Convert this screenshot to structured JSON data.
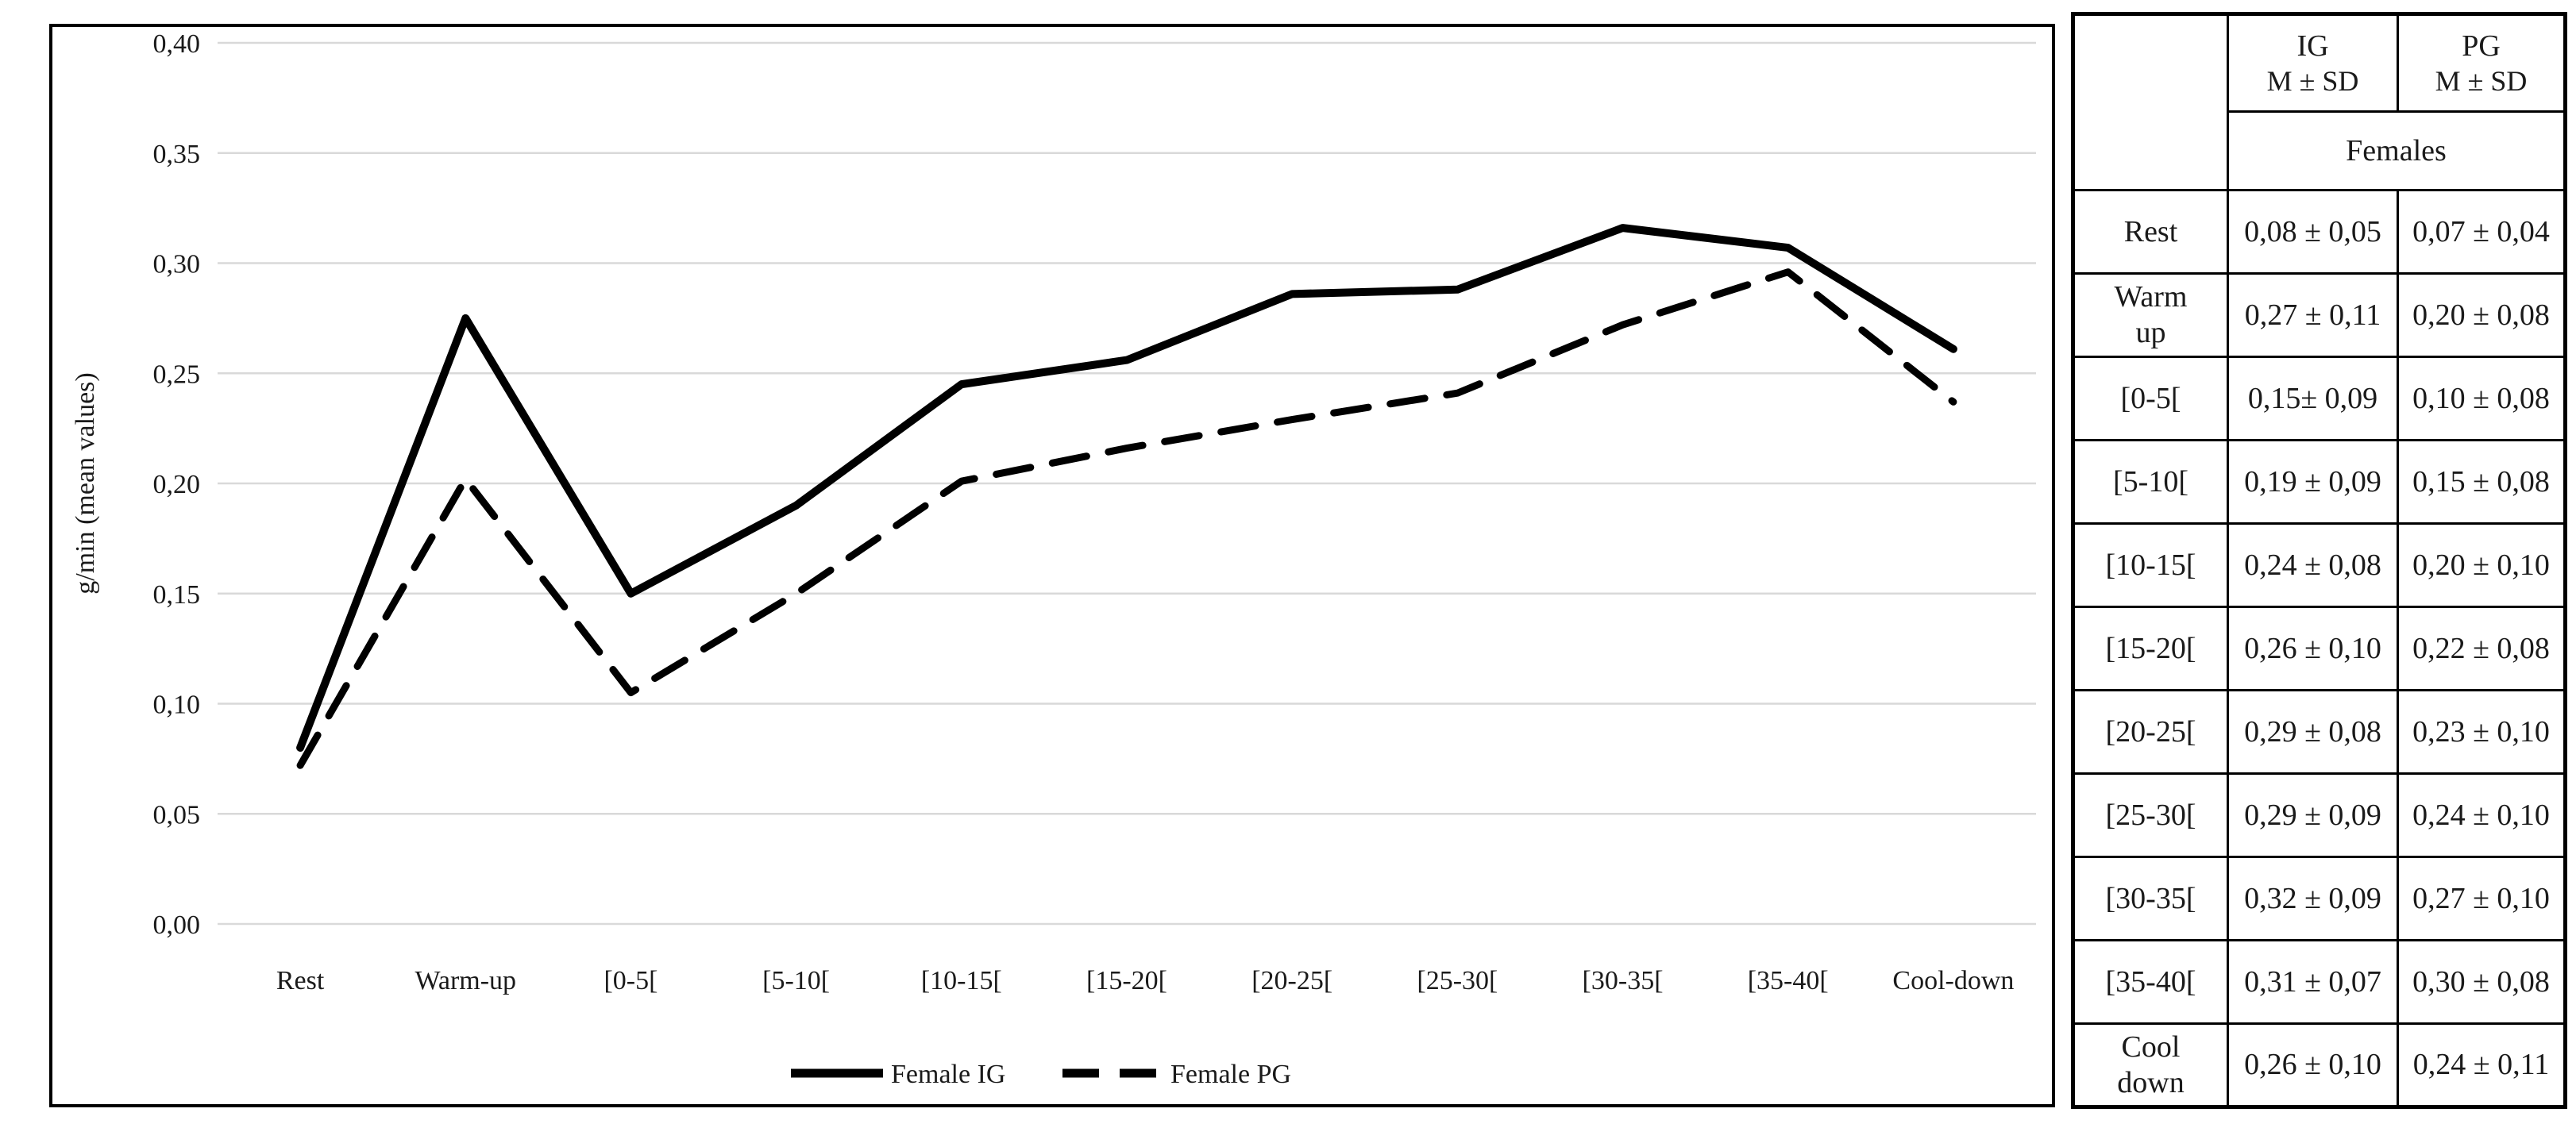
{
  "chart_data": {
    "type": "line",
    "title": "",
    "categories": [
      "Rest",
      "Warm-up",
      "[0-5[",
      "[5-10[",
      "[10-15[",
      "[15-20[",
      "[20-25[",
      "[25-30[",
      "[30-35[",
      "[35-40[",
      "Cool-down"
    ],
    "series": [
      {
        "name": "Female IG",
        "style": "solid",
        "values": [
          0.08,
          0.275,
          0.15,
          0.19,
          0.245,
          0.256,
          0.286,
          0.288,
          0.316,
          0.307,
          0.261
        ]
      },
      {
        "name": "Female PG",
        "style": "dashed",
        "values": [
          0.072,
          0.202,
          0.105,
          0.15,
          0.201,
          0.216,
          0.229,
          0.241,
          0.272,
          0.296,
          0.237
        ]
      }
    ],
    "xlabel": "",
    "ylabel": "g/min (mean values)",
    "ylim": [
      0,
      0.4
    ],
    "ytick_step": 0.05,
    "ytick_labels": [
      "0,40",
      "0,35",
      "0,30",
      "0,25",
      "0,20",
      "0,15",
      "0,10",
      "0,05",
      "0,00"
    ],
    "decimal_separator": ",",
    "grid": "horizontal",
    "legend_position": "bottom-center"
  },
  "table": {
    "col_headers": [
      {
        "line1": "IG",
        "line2": "M ± SD"
      },
      {
        "line1": "PG",
        "line2": "M ± SD"
      }
    ],
    "group_header": "Females",
    "rows": [
      {
        "label": "Rest",
        "ig": "0,08 ± 0,05",
        "pg": "0,07 ± 0,04"
      },
      {
        "label": "Warm up",
        "ig": "0,27 ± 0,11",
        "pg": "0,20 ± 0,08"
      },
      {
        "label": "[0-5[",
        "ig": "0,15± 0,09",
        "pg": "0,10 ± 0,08"
      },
      {
        "label": "[5-10[",
        "ig": "0,19 ± 0,09",
        "pg": "0,15 ± 0,08"
      },
      {
        "label": "[10-15[",
        "ig": "0,24 ± 0,08",
        "pg": "0,20 ± 0,10"
      },
      {
        "label": "[15-20[",
        "ig": "0,26 ± 0,10",
        "pg": "0,22 ± 0,08"
      },
      {
        "label": "[20-25[",
        "ig": "0,29 ± 0,08",
        "pg": "0,23 ± 0,10"
      },
      {
        "label": "[25-30[",
        "ig": "0,29 ± 0,09",
        "pg": "0,24 ± 0,10"
      },
      {
        "label": "[30-35[",
        "ig": "0,32 ± 0,09",
        "pg": "0,27 ± 0,10"
      },
      {
        "label": "[35-40[",
        "ig": "0,31 ± 0,07",
        "pg": "0,30 ± 0,08"
      },
      {
        "label": "Cool down",
        "ig": "0,26 ± 0,10",
        "pg": "0,24 ± 0,11"
      }
    ]
  },
  "colors": {
    "line": "#000000",
    "grid": "#d9d9d9",
    "text": "#1a1a1a",
    "border": "#000000",
    "background": "#ffffff"
  }
}
